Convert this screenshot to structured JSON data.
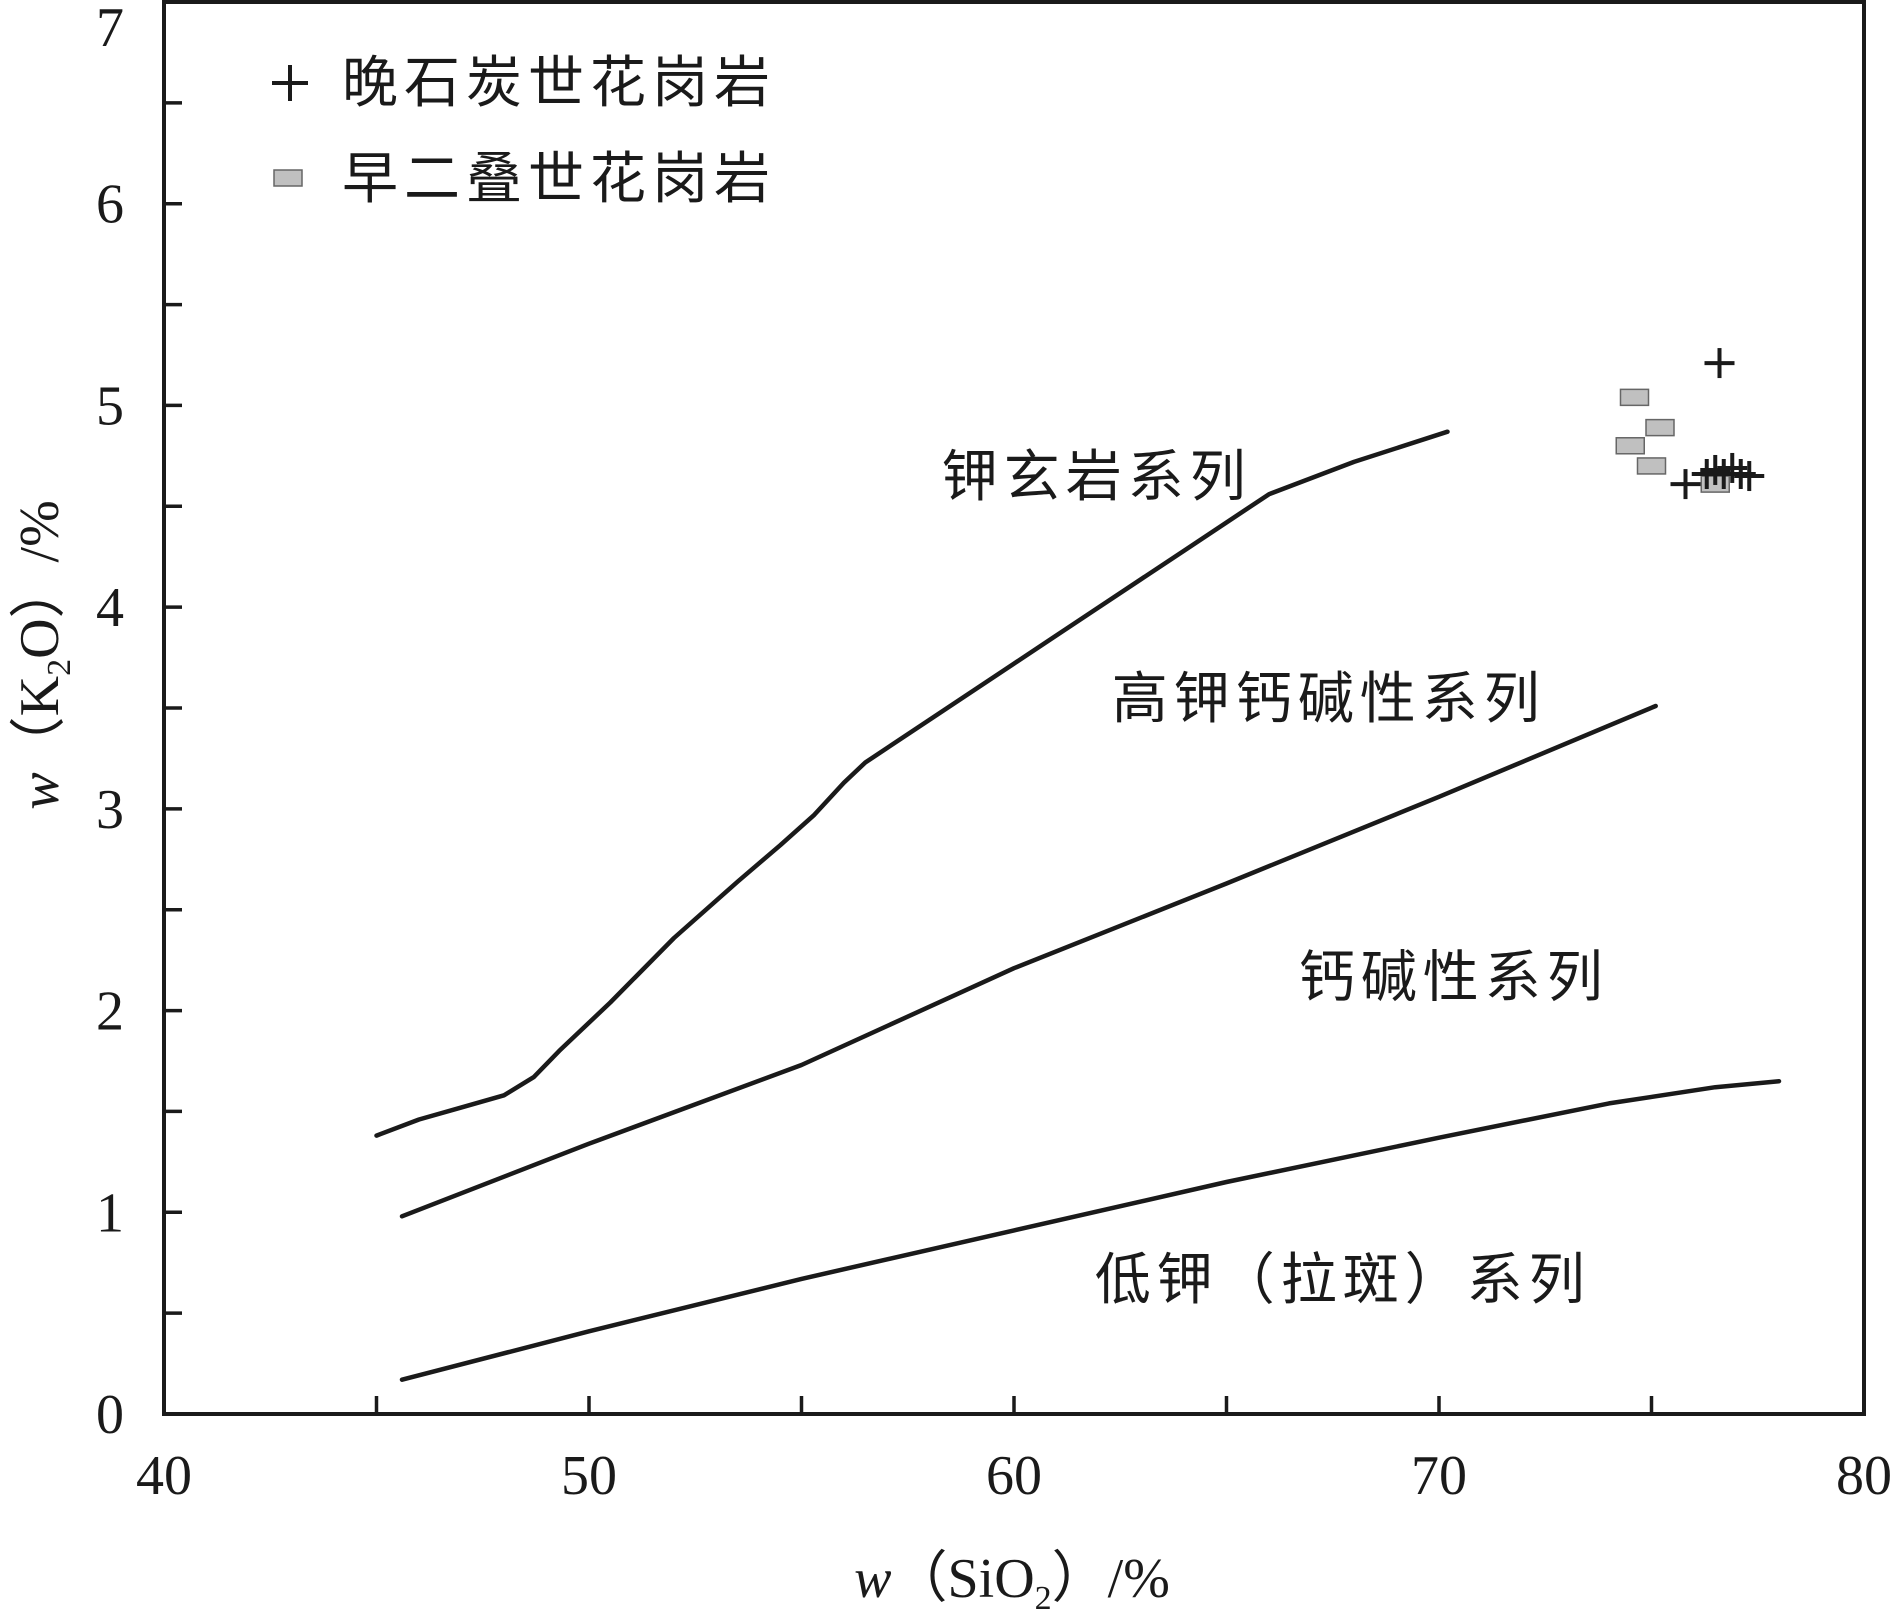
{
  "chart_data": {
    "type": "scatter",
    "x_axis": {
      "label_italic": "w",
      "label_open": "（SiO",
      "label_sub": "2",
      "label_close": "）/%",
      "range": [
        40,
        80
      ],
      "ticks": [
        40,
        50,
        60,
        70,
        80
      ],
      "tick_labels": [
        "40",
        "50",
        "60",
        "70",
        "80"
      ],
      "minor_ticks": [
        45,
        55,
        65,
        75
      ]
    },
    "y_axis": {
      "label_italic": "w",
      "label_open": "（K",
      "label_sub": "2",
      "label_close": "O）/%",
      "range": [
        0,
        7
      ],
      "ticks": [
        0,
        1,
        2,
        3,
        4,
        5,
        6,
        7
      ],
      "tick_labels": [
        "0",
        "1",
        "2",
        "3",
        "4",
        "5",
        "6",
        "7"
      ],
      "minor_ticks": [
        0.5,
        1.5,
        2.5,
        3.5,
        4.5,
        5.5,
        6.5
      ]
    },
    "grid": false,
    "legend_position": "top-left",
    "boundaries": [
      {
        "points": [
          [
            45.0,
            1.38
          ],
          [
            46.0,
            1.46
          ],
          [
            47.0,
            1.52
          ],
          [
            48.0,
            1.58
          ],
          [
            48.7,
            1.67
          ],
          [
            49.3,
            1.8
          ],
          [
            50.5,
            2.04
          ],
          [
            52.0,
            2.36
          ],
          [
            53.5,
            2.64
          ],
          [
            54.5,
            2.82
          ],
          [
            55.3,
            2.97
          ],
          [
            56.0,
            3.13
          ],
          [
            56.5,
            3.23
          ],
          [
            58.0,
            3.44
          ],
          [
            60.0,
            3.72
          ],
          [
            62.0,
            4.0
          ],
          [
            64.0,
            4.28
          ],
          [
            66.0,
            4.56
          ],
          [
            68.0,
            4.72
          ],
          [
            70.2,
            4.87
          ]
        ]
      },
      {
        "points": [
          [
            45.6,
            0.98
          ],
          [
            50.0,
            1.34
          ],
          [
            55.0,
            1.73
          ],
          [
            60.0,
            2.21
          ],
          [
            65.0,
            2.63
          ],
          [
            70.0,
            3.06
          ],
          [
            75.1,
            3.51
          ]
        ]
      },
      {
        "points": [
          [
            45.6,
            0.17
          ],
          [
            50.0,
            0.41
          ],
          [
            55.0,
            0.67
          ],
          [
            60.0,
            0.91
          ],
          [
            65.0,
            1.15
          ],
          [
            70.0,
            1.37
          ],
          [
            74.0,
            1.54
          ],
          [
            76.5,
            1.62
          ],
          [
            78.0,
            1.65
          ]
        ]
      }
    ],
    "region_labels": [
      {
        "text": "钾玄岩系列",
        "x": 58.3,
        "y": 4.55
      },
      {
        "text": "高钾钙碱性系列",
        "x": 62.3,
        "y": 3.45
      },
      {
        "text": "钙碱性系列",
        "x": 66.7,
        "y": 2.07
      },
      {
        "text": "低钾（拉斑）系列",
        "x": 61.9,
        "y": 0.57
      }
    ],
    "series": [
      {
        "name": "晚石炭世花岗岩",
        "marker": "plus",
        "points": [
          [
            76.6,
            5.21
          ],
          [
            75.8,
            4.61
          ],
          [
            76.3,
            4.66
          ],
          [
            76.5,
            4.68
          ],
          [
            76.7,
            4.66
          ],
          [
            76.9,
            4.69
          ],
          [
            77.1,
            4.66
          ],
          [
            77.3,
            4.65
          ]
        ]
      },
      {
        "name": "早二叠世花岗岩",
        "marker": "square",
        "color": "#c0c0c0",
        "points": [
          [
            74.6,
            5.04
          ],
          [
            75.2,
            4.89
          ],
          [
            74.5,
            4.8
          ],
          [
            75.0,
            4.7
          ],
          [
            76.5,
            4.61
          ]
        ]
      }
    ]
  }
}
